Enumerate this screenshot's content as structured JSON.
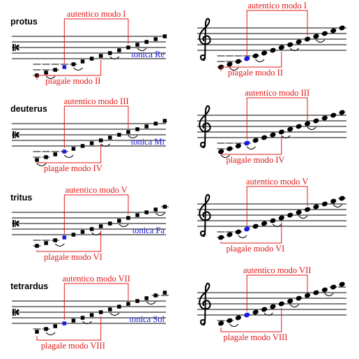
{
  "colors": {
    "staff": "#000000",
    "note": "#000000",
    "tonic": "#1a1ae0",
    "bracket": "#e01818",
    "label_red": "#e01818",
    "label_blue": "#1a1ae0"
  },
  "clefs": {
    "left": "c-clef-icon",
    "right": "treble-clef-icon"
  },
  "modes": [
    {
      "name": "protus",
      "authentic_label": "autentico modo I",
      "plagal_label": "plagale modo II",
      "tonic_label": "tonica Re"
    },
    {
      "name": "deuterus",
      "authentic_label": "autentico modo III",
      "plagal_label": "plagale modo IV",
      "tonic_label": "tonica Mi"
    },
    {
      "name": "tritus",
      "authentic_label": "autentico modo V",
      "plagal_label": "plagale modo VI",
      "tonic_label": "tonica Fa"
    },
    {
      "name": "tetrardus",
      "authentic_label": "autentico modo VII",
      "plagal_label": "plagale modo VIII",
      "tonic_label": "tonica Sol"
    }
  ]
}
